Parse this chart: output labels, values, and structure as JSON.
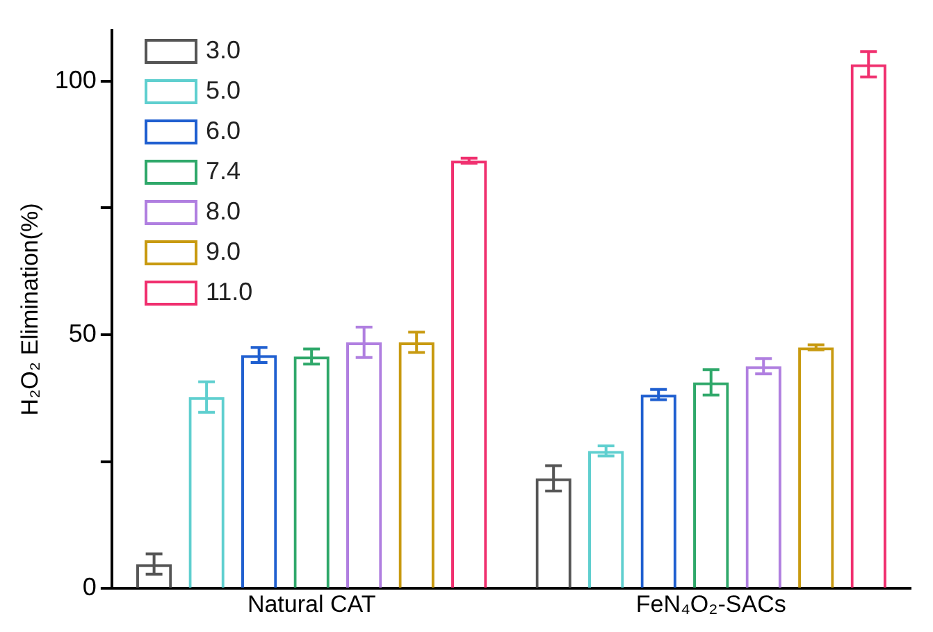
{
  "chart_data": {
    "type": "bar",
    "ylabel": "H₂O₂ Elimination(%)",
    "categories": [
      "Natural CAT",
      "FeN₄O₂-SACs"
    ],
    "series": [
      {
        "name": "3.0",
        "color": "#555555",
        "values": [
          4.8,
          21.7
        ],
        "errors": [
          2,
          2.5
        ]
      },
      {
        "name": "5.0",
        "color": "#5fcfcf",
        "values": [
          37.7,
          27.1
        ],
        "errors": [
          3,
          1
        ]
      },
      {
        "name": "6.0",
        "color": "#1f5fd0",
        "values": [
          46,
          38.2
        ],
        "errors": [
          1.5,
          1
        ]
      },
      {
        "name": "7.4",
        "color": "#2fa86a",
        "values": [
          45.7,
          40.6
        ],
        "errors": [
          1.5,
          2.5
        ]
      },
      {
        "name": "8.0",
        "color": "#b07fe0",
        "values": [
          48.5,
          43.8
        ],
        "errors": [
          3,
          1.5
        ]
      },
      {
        "name": "9.0",
        "color": "#c89a10",
        "values": [
          48.5,
          47.5
        ],
        "errors": [
          2,
          0.5
        ]
      },
      {
        "name": "11.0",
        "color": "#f0306f",
        "values": [
          84.3,
          103.3
        ],
        "errors": [
          0.5,
          2.5
        ]
      }
    ],
    "ylim": [
      0,
      110
    ],
    "yticks": [
      0,
      {
        "value": 25,
        "label": null
      },
      50,
      {
        "value": 75,
        "label": null
      },
      100
    ],
    "grid": false,
    "legend": "top left"
  }
}
